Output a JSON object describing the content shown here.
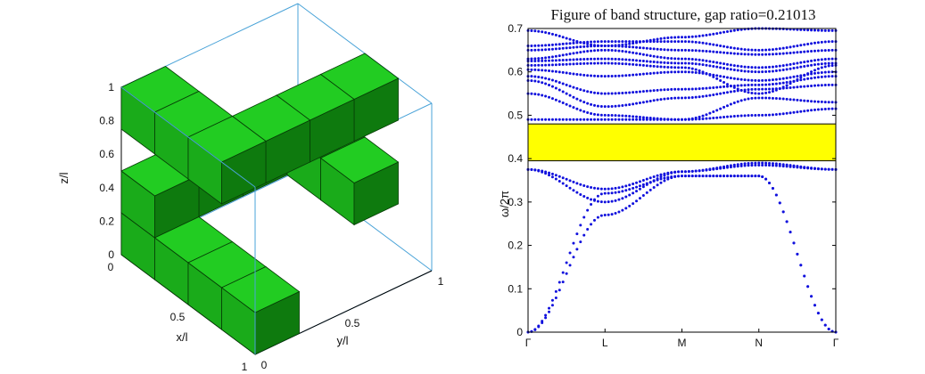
{
  "chart_data": [
    {
      "type": "3d-voxel",
      "xlabel": "x/l",
      "ylabel": "y/l",
      "zlabel": "z/l",
      "x_ticks": [
        "0",
        "0.5",
        "1"
      ],
      "y_ticks": [
        "0",
        "0.5",
        "1"
      ],
      "z_ticks": [
        "0",
        "0.2",
        "0.4",
        "0.6",
        "0.8",
        "1"
      ],
      "xlim": [
        0,
        1
      ],
      "ylim": [
        0,
        1
      ],
      "zlim": [
        0,
        1
      ],
      "voxel_size": 0.25,
      "voxels": [
        {
          "x": 0,
          "y": 0,
          "z": 0
        },
        {
          "x": 0,
          "y": 0,
          "z": 0.25
        },
        {
          "x": 0.25,
          "y": 0,
          "z": 0
        },
        {
          "x": 0.5,
          "y": 0,
          "z": 0
        },
        {
          "x": 0.75,
          "y": 0,
          "z": 0
        },
        {
          "x": 0,
          "y": 0.25,
          "z": 0.25
        },
        {
          "x": 0,
          "y": 0.5,
          "z": 0.25
        },
        {
          "x": 0,
          "y": 0.75,
          "z": 0.25
        },
        {
          "x": 0.25,
          "y": 0.75,
          "z": 0.25
        },
        {
          "x": 0.5,
          "y": 0.75,
          "z": 0.25
        },
        {
          "x": 0.5,
          "y": 0,
          "z": 0.75
        },
        {
          "x": 0.5,
          "y": 0.25,
          "z": 0.75
        },
        {
          "x": 0.5,
          "y": 0.5,
          "z": 0.75
        },
        {
          "x": 0.5,
          "y": 0.75,
          "z": 0.75
        },
        {
          "x": 0.25,
          "y": 0,
          "z": 0.75
        },
        {
          "x": 0,
          "y": 0,
          "z": 0.75
        }
      ],
      "colors": {
        "top": "#22cc22",
        "left": "#1aab1a",
        "right": "#0e7a0e",
        "edge": "#063d06",
        "box": "#4aa3d8"
      }
    },
    {
      "type": "line",
      "title": "Figure of band structure, gap ratio=0.21013",
      "ylabel": "ω/2π",
      "xlabel": "",
      "x_ticks": [
        "Γ",
        "L",
        "M",
        "N",
        "Γ"
      ],
      "y_ticks": [
        "0",
        "0.1",
        "0.2",
        "0.3",
        "0.4",
        "0.5",
        "0.6",
        "0.7"
      ],
      "ylim": [
        0,
        0.7
      ],
      "gap": {
        "lower": 0.395,
        "upper": 0.48,
        "color": "#ffff00"
      },
      "series_color": "#1010dd",
      "series": [
        {
          "values": [
            0.0,
            0.27,
            0.36,
            0.36,
            0.0
          ]
        },
        {
          "values": [
            0.0,
            0.32,
            0.36,
            0.36,
            0.0
          ]
        },
        {
          "values": [
            0.375,
            0.3,
            0.37,
            0.385,
            0.375
          ]
        },
        {
          "values": [
            0.375,
            0.33,
            0.37,
            0.39,
            0.375
          ]
        },
        {
          "values": [
            0.49,
            0.49,
            0.49,
            0.5,
            0.515
          ]
        },
        {
          "values": [
            0.55,
            0.5,
            0.49,
            0.54,
            0.53
          ]
        },
        {
          "values": [
            0.58,
            0.52,
            0.54,
            0.56,
            0.57
          ]
        },
        {
          "values": [
            0.59,
            0.55,
            0.56,
            0.57,
            0.59
          ]
        },
        {
          "values": [
            0.605,
            0.59,
            0.6,
            0.58,
            0.6
          ]
        },
        {
          "values": [
            0.615,
            0.62,
            0.61,
            0.55,
            0.615
          ]
        },
        {
          "values": [
            0.625,
            0.63,
            0.62,
            0.6,
            0.62
          ]
        },
        {
          "values": [
            0.63,
            0.65,
            0.63,
            0.61,
            0.63
          ]
        },
        {
          "values": [
            0.65,
            0.66,
            0.65,
            0.64,
            0.65
          ]
        },
        {
          "values": [
            0.66,
            0.67,
            0.67,
            0.65,
            0.67
          ]
        },
        {
          "values": [
            0.695,
            0.66,
            0.68,
            0.7,
            0.695
          ]
        }
      ]
    }
  ]
}
